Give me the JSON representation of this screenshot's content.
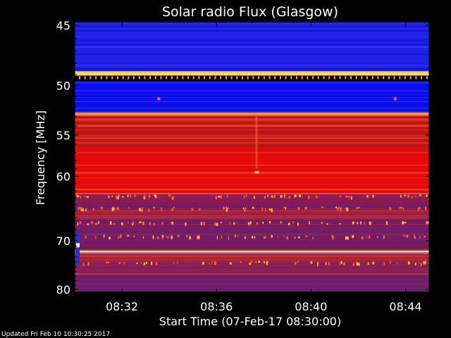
{
  "chart_data": {
    "type": "heatmap",
    "title": "Solar radio Flux (Glasgow)",
    "xlabel": "Start Time (07-Feb-17 08:30:00)",
    "ylabel": "Frequency [MHz]",
    "x_ticks": [
      "08:32",
      "08:36",
      "08:40",
      "08:44"
    ],
    "x_tick_minutes": [
      2,
      6,
      10,
      14
    ],
    "x_range_minutes": [
      0,
      15
    ],
    "y_ticks": [
      45,
      50,
      55,
      60,
      70,
      80
    ],
    "y_range_mhz": [
      45,
      80
    ],
    "y_scale": "reciprocal",
    "bands": [
      {
        "f0": 44.8,
        "f1": 48.7,
        "color": "#1f22e6",
        "texture": "noise"
      },
      {
        "f0": 48.7,
        "f1": 48.9,
        "color": "#ffd040"
      },
      {
        "f0": 48.9,
        "f1": 49.0,
        "color": "#fff2c0"
      },
      {
        "f0": 49.0,
        "f1": 49.1,
        "color": "#ffb060"
      },
      {
        "f0": 49.1,
        "f1": 49.6,
        "color": "#000000",
        "texture": "dots"
      },
      {
        "f0": 49.6,
        "f1": 52.5,
        "color": "#0c10f0"
      },
      {
        "f0": 52.5,
        "f1": 52.9,
        "color": "#f09050"
      },
      {
        "f0": 52.9,
        "f1": 56.5,
        "color": "#c01818"
      },
      {
        "f0": 56.5,
        "f1": 62.3,
        "color": "#e80a0a"
      },
      {
        "f0": 62.3,
        "f1": 64.9,
        "color": "#8a1a50"
      },
      {
        "f0": 64.9,
        "f1": 66.4,
        "color": "#b42030"
      },
      {
        "f0": 66.4,
        "f1": 71.5,
        "color": "#7a1a60"
      },
      {
        "f0": 71.5,
        "f1": 71.8,
        "color": "#c02828"
      },
      {
        "f0": 71.8,
        "f1": 72.1,
        "color": "#ffe070"
      },
      {
        "f0": 72.1,
        "f1": 72.3,
        "color": "#fff6c8"
      },
      {
        "f0": 72.3,
        "f1": 73.5,
        "color": "#b02030"
      },
      {
        "f0": 73.5,
        "f1": 74.2,
        "color": "#d02020"
      },
      {
        "f0": 74.2,
        "f1": 76.5,
        "color": "#8a2050"
      },
      {
        "f0": 76.5,
        "f1": 80.5,
        "color": "#70206a"
      }
    ],
    "colors": {
      "background": "#000000",
      "text": "#ffffff",
      "low": "#1010f0",
      "high": "#ff1010",
      "peak": "#fff6c8"
    }
  },
  "footer": {
    "updated": "Updated Fri Feb 10 10:30:25 2017"
  }
}
